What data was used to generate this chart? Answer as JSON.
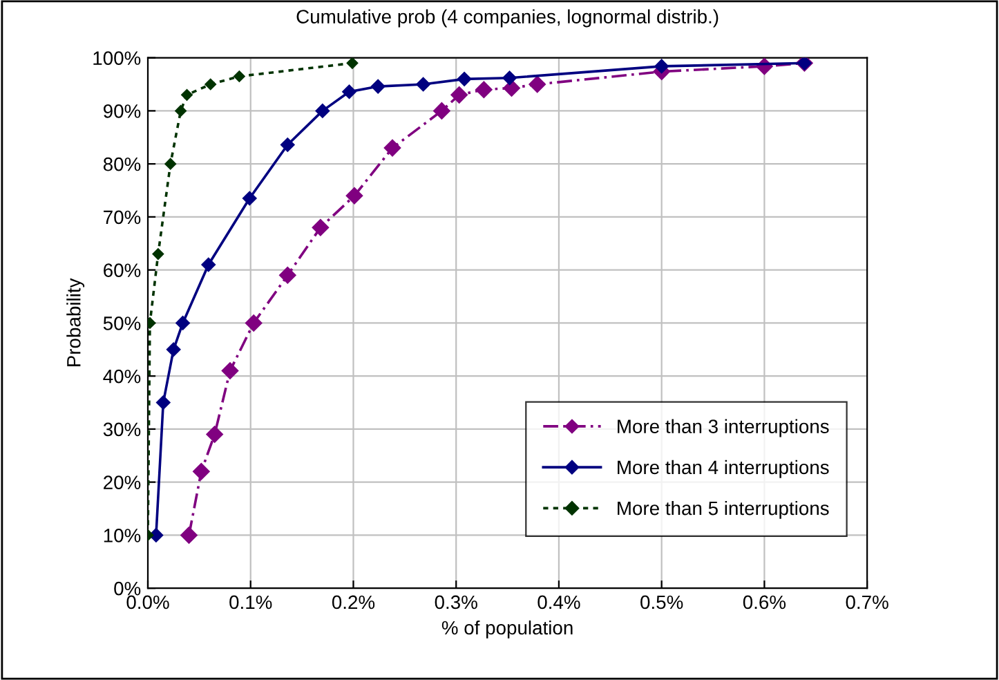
{
  "chart_data": {
    "type": "line",
    "title": "Cumulative prob (4 companies, lognormal distrib.)",
    "xlabel": "% of population",
    "ylabel": "Probability",
    "xlim": [
      0,
      0.7
    ],
    "xticks": [
      {
        "value": 0,
        "label": "0.0%"
      },
      {
        "value": 0.1,
        "label": "0.1%"
      },
      {
        "value": 0.2,
        "label": "0.2%"
      },
      {
        "value": 0.3,
        "label": "0.3%"
      },
      {
        "value": 0.4,
        "label": "0.4%"
      },
      {
        "value": 0.5,
        "label": "0.5%"
      },
      {
        "value": 0.6,
        "label": "0.6%"
      },
      {
        "value": 0.7,
        "label": "0.7%"
      }
    ],
    "ylim": [
      0,
      100
    ],
    "yticks": [
      {
        "value": 0,
        "label": "0%"
      },
      {
        "value": 10,
        "label": "10%"
      },
      {
        "value": 20,
        "label": "20%"
      },
      {
        "value": 30,
        "label": "30%"
      },
      {
        "value": 40,
        "label": "40%"
      },
      {
        "value": 50,
        "label": "50%"
      },
      {
        "value": 60,
        "label": "60%"
      },
      {
        "value": 70,
        "label": "70%"
      },
      {
        "value": 80,
        "label": "80%"
      },
      {
        "value": 90,
        "label": "90%"
      },
      {
        "value": 100,
        "label": "100%"
      }
    ],
    "grid": true,
    "legend": "bottom right",
    "marker": "diamond",
    "series": [
      {
        "name": "More than 3 interruptions",
        "color": "#800080",
        "line_style": "dashed",
        "x": [
          0.04,
          0.052,
          0.065,
          0.08,
          0.103,
          0.136,
          0.168,
          0.201,
          0.238,
          0.286,
          0.303,
          0.327,
          0.354,
          0.379,
          0.5,
          0.6,
          0.639
        ],
        "values": [
          10,
          22,
          29,
          41,
          50,
          59,
          68,
          74,
          83,
          90,
          93,
          94,
          94.3,
          95,
          97.4,
          98.4,
          99
        ]
      },
      {
        "name": "More than 4 interruptions",
        "color": "#000080",
        "line_style": "solid",
        "x": [
          0.008,
          0.015,
          0.025,
          0.034,
          0.059,
          0.099,
          0.136,
          0.17,
          0.196,
          0.224,
          0.268,
          0.308,
          0.352,
          0.5,
          0.639
        ],
        "values": [
          10,
          35,
          45,
          50,
          61,
          73.5,
          83.6,
          90,
          93.6,
          94.6,
          95,
          96,
          96.2,
          98.4,
          99
        ]
      },
      {
        "name": "More than 5 interruptions",
        "color": "#003300",
        "line_style": "dotted",
        "x": [
          0.0,
          0.002,
          0.01,
          0.022,
          0.032,
          0.038,
          0.061,
          0.089,
          0.199
        ],
        "values": [
          10,
          50,
          63,
          80,
          90,
          93,
          95,
          96.5,
          99
        ]
      }
    ]
  }
}
